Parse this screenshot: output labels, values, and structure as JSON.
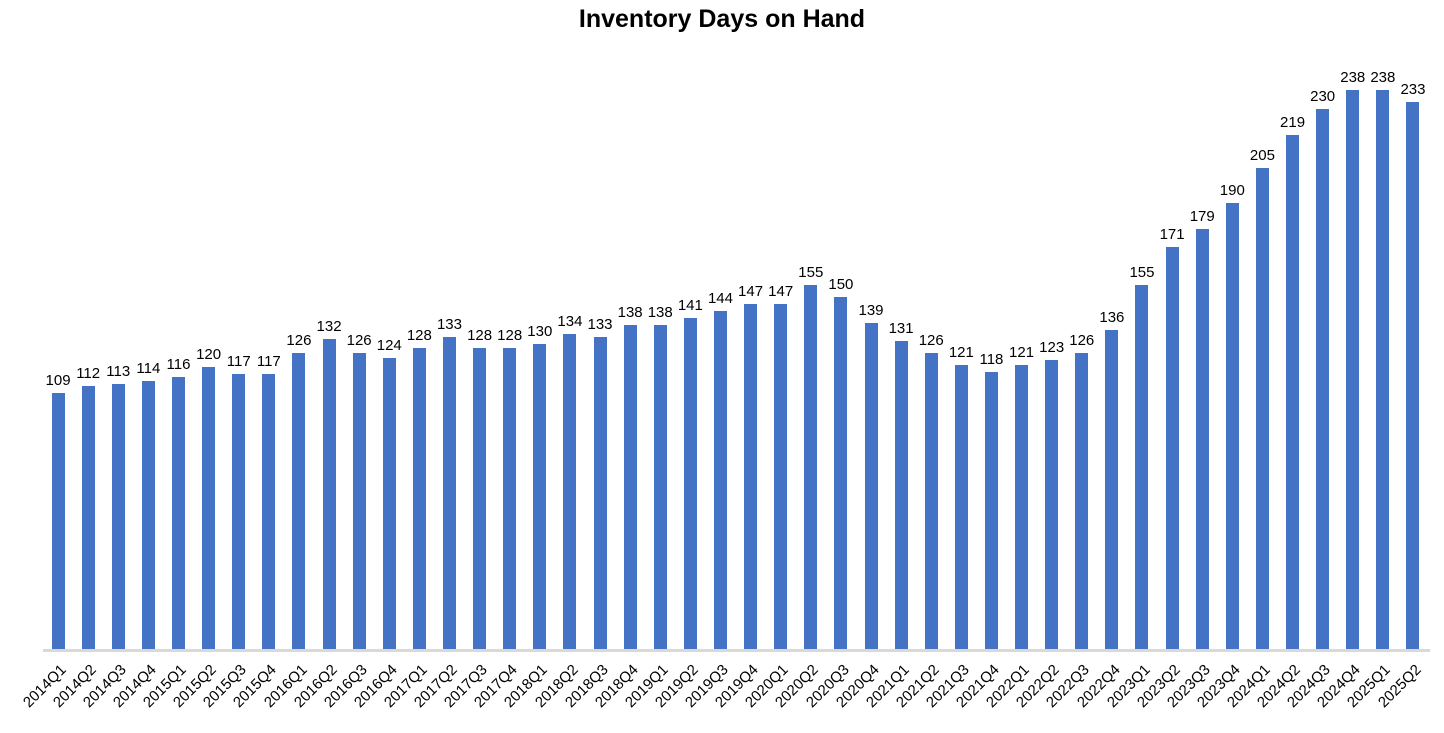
{
  "title": "Inventory Days on Hand",
  "colors": {
    "bar": "#4472C4",
    "axis_line": "#D9D9D9",
    "label": "#000000",
    "background": "#FFFFFF"
  },
  "chart_data": {
    "type": "bar",
    "title": "Inventory Days on Hand",
    "xlabel": "",
    "ylabel": "",
    "ylim": [
      0,
      250
    ],
    "grid": false,
    "legend": false,
    "data_labels": true,
    "x_tick_rotation": 45,
    "categories": [
      "2014Q1",
      "2014Q2",
      "2014Q3",
      "2014Q4",
      "2015Q1",
      "2015Q2",
      "2015Q3",
      "2015Q4",
      "2016Q1",
      "2016Q2",
      "2016Q3",
      "2016Q4",
      "2017Q1",
      "2017Q2",
      "2017Q3",
      "2017Q4",
      "2018Q1",
      "2018Q2",
      "2018Q3",
      "2018Q4",
      "2019Q1",
      "2019Q2",
      "2019Q3",
      "2019Q4",
      "2020Q1",
      "2020Q2",
      "2020Q3",
      "2020Q4",
      "2021Q1",
      "2021Q2",
      "2021Q3",
      "2021Q4",
      "2022Q1",
      "2022Q2",
      "2022Q3",
      "2022Q4",
      "2023Q1",
      "2023Q2",
      "2023Q3",
      "2023Q4",
      "2024Q1",
      "2024Q2",
      "2024Q3",
      "2024Q4",
      "2025Q1",
      "2025Q2"
    ],
    "values": [
      109,
      112,
      113,
      114,
      116,
      120,
      117,
      117,
      126,
      132,
      126,
      124,
      128,
      133,
      128,
      128,
      130,
      134,
      133,
      138,
      138,
      141,
      144,
      147,
      147,
      155,
      150,
      139,
      131,
      126,
      121,
      118,
      121,
      123,
      126,
      136,
      155,
      171,
      179,
      190,
      205,
      219,
      230,
      238,
      238,
      233
    ]
  }
}
